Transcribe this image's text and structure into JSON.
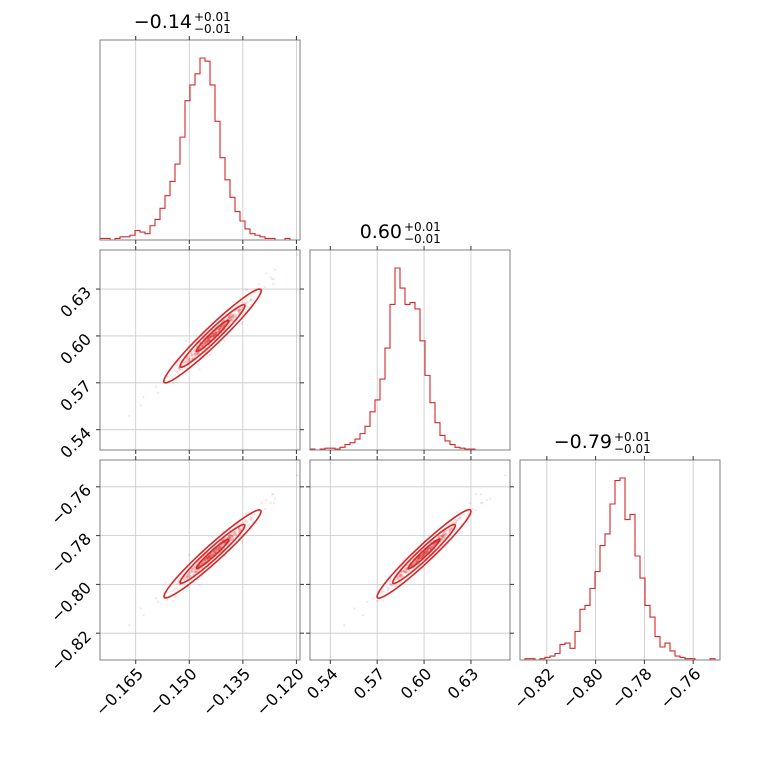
{
  "chart_data": {
    "type": "corner",
    "color": "#d62728",
    "params": [
      {
        "title": {
          "median": "−0.14",
          "upper": "+0.01",
          "lower": "−0.01"
        },
        "range": [
          -0.175,
          -0.119
        ],
        "ticks": [
          -0.165,
          -0.15,
          -0.135,
          -0.12
        ],
        "tick_labels": [
          "−0.165",
          "−0.150",
          "−0.135",
          "−0.120"
        ],
        "mean": -0.1435,
        "sd": 0.0045
      },
      {
        "title": {
          "median": "0.60",
          "upper": "+0.01",
          "lower": "−0.01"
        },
        "range": [
          0.527,
          0.655
        ],
        "ticks": [
          0.54,
          0.57,
          0.6,
          0.63
        ],
        "tick_labels": [
          "0.54",
          "0.57",
          "0.60",
          "0.63"
        ],
        "mean": 0.6,
        "sd": 0.01
      },
      {
        "title": {
          "median": "−0.79",
          "upper": "+0.01",
          "lower": "−0.01"
        },
        "range": [
          -0.831,
          -0.749
        ],
        "ticks": [
          -0.82,
          -0.8,
          -0.78,
          -0.76
        ],
        "tick_labels": [
          "−0.82",
          "−0.80",
          "−0.78",
          "−0.76"
        ],
        "mean": -0.7875,
        "sd": 0.006
      }
    ],
    "hist1d": [
      {
        "bins": 40,
        "counts": [
          1,
          1,
          0,
          1,
          2,
          2,
          3,
          6,
          5,
          4,
          9,
          13,
          20,
          28,
          37,
          48,
          65,
          88,
          98,
          105,
          115,
          113,
          98,
          75,
          52,
          38,
          27,
          18,
          12,
          7,
          4,
          3,
          2,
          1,
          1,
          0,
          0,
          1,
          0,
          0
        ]
      },
      {
        "bins": 40,
        "counts": [
          1,
          0,
          1,
          2,
          2,
          1,
          3,
          6,
          8,
          12,
          18,
          26,
          42,
          55,
          78,
          112,
          160,
          200,
          178,
          160,
          162,
          155,
          120,
          82,
          52,
          30,
          16,
          10,
          6,
          3,
          2,
          1,
          1,
          0,
          0,
          0,
          0,
          0,
          0,
          0
        ]
      },
      {
        "bins": 40,
        "counts": [
          0,
          1,
          1,
          0,
          1,
          2,
          3,
          5,
          12,
          13,
          9,
          22,
          39,
          42,
          55,
          68,
          88,
          97,
          120,
          138,
          140,
          108,
          112,
          80,
          63,
          42,
          33,
          18,
          10,
          13,
          7,
          3,
          2,
          1,
          1,
          0,
          0,
          0,
          1,
          0
        ]
      }
    ],
    "contour_levels": [
      0.393,
      0.865,
      0.989
    ],
    "correlation": 0.98,
    "grid": true
  }
}
